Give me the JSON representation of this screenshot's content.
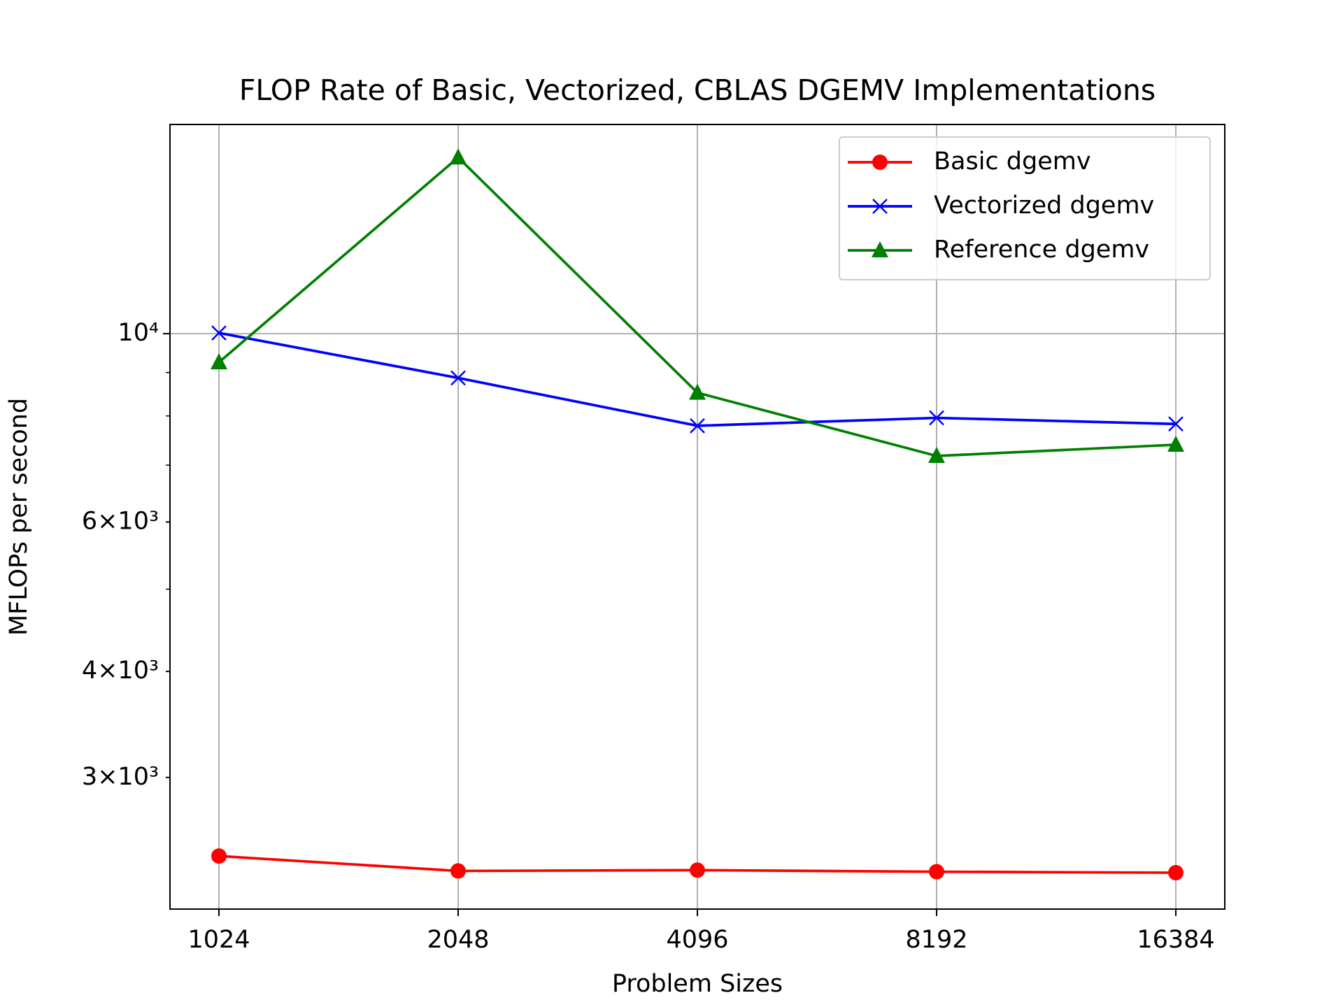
{
  "chart_data": {
    "type": "line",
    "title": "FLOP Rate of Basic, Vectorized, CBLAS DGEMV Implementations",
    "xlabel": "Problem Sizes",
    "ylabel": "MFLOPs per second",
    "categories": [
      "1024",
      "2048",
      "4096",
      "8192",
      "16384"
    ],
    "yscale": "log",
    "ylim": [
      2099,
      17640
    ],
    "yticks": [
      {
        "value": 3000,
        "label": "3×10³"
      },
      {
        "value": 4000,
        "label": "4×10³"
      },
      {
        "value": 6000,
        "label": "6×10³"
      },
      {
        "value": 10000,
        "label": "10⁴"
      }
    ],
    "yminorticks": [
      5000,
      7000,
      8000,
      9000
    ],
    "grid": true,
    "legend": "upper right",
    "series": [
      {
        "name": "Basic dgemv",
        "color": "#ff0000",
        "marker": "circle",
        "values": [
          2424,
          2328,
          2333,
          2323,
          2317
        ]
      },
      {
        "name": "Vectorized dgemv",
        "color": "#0000ff",
        "marker": "x",
        "values": [
          10020,
          8868,
          7789,
          7958,
          7827
        ]
      },
      {
        "name": "Reference dgemv",
        "color": "#008000",
        "marker": "triangle",
        "values": [
          9253,
          16130,
          8520,
          7177,
          7399
        ]
      }
    ]
  }
}
